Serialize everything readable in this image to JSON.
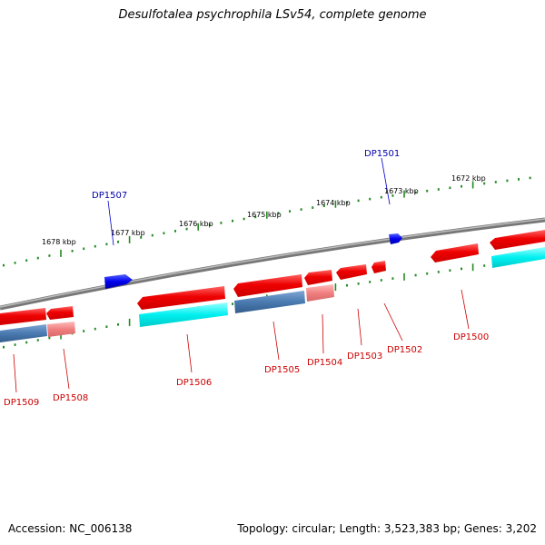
{
  "title": "Desulfotalea psychrophila LSv54, complete genome",
  "footer": {
    "accession": "Accession: NC_006138",
    "info": "Topology: circular; Length: 3,523,383 bp; Genes: 3,202"
  },
  "scale_labels": [
    "1678 kbp",
    "1677 kbp",
    "1676 kbp",
    "1675 kbp",
    "1674 kbp",
    "1673 kbp",
    "1672 kbp"
  ],
  "genes": [
    {
      "label": "DP1501",
      "strand": "forward",
      "color": "#0000cc"
    },
    {
      "label": "DP1507",
      "strand": "forward",
      "color": "#0000cc"
    },
    {
      "label": "DP1500",
      "strand": "reverse",
      "color": "#cc0000"
    },
    {
      "label": "DP1502",
      "strand": "reverse",
      "color": "#cc0000"
    },
    {
      "label": "DP1503",
      "strand": "reverse",
      "color": "#cc0000"
    },
    {
      "label": "DP1504",
      "strand": "reverse",
      "color": "#cc0000"
    },
    {
      "label": "DP1505",
      "strand": "reverse",
      "color": "#cc0000"
    },
    {
      "label": "DP1506",
      "strand": "reverse",
      "color": "#cc0000"
    },
    {
      "label": "DP1508",
      "strand": "reverse",
      "color": "#cc0000"
    },
    {
      "label": "DP1509",
      "strand": "reverse",
      "color": "#cc0000"
    }
  ],
  "colors": {
    "backbone": "#888888",
    "scale_ticks": "#228b22",
    "reverse_gene": "#ee1111",
    "forward_gene": "#1122ee",
    "cyan_track": "#00e5e5",
    "steelblue_track": "#4a7ab0",
    "pink_track": "#f08080"
  }
}
